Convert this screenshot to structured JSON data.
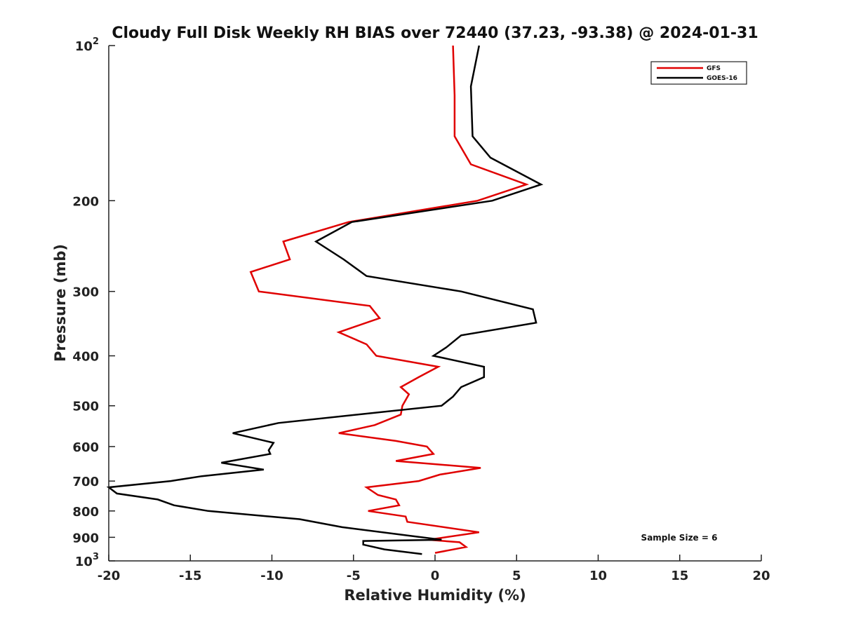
{
  "chart_data": {
    "type": "line",
    "title": "Cloudy Full Disk Weekly RH BIAS over 72440 (37.23, -93.38) @ 2024-01-31",
    "xlabel": "Relative Humidity (%)",
    "ylabel": "Pressure (mb)",
    "xlim": [
      -20,
      20
    ],
    "ylim": [
      100,
      1000
    ],
    "y_scale": "log",
    "y_reversed": true,
    "grid": false,
    "legend_position": "top-right",
    "x_ticks": [
      -20,
      -15,
      -10,
      -5,
      0,
      5,
      10,
      15,
      20
    ],
    "x_tick_labels": [
      "-20",
      "-15",
      "-10",
      "-5",
      "0",
      "5",
      "10",
      "15",
      "20"
    ],
    "y_ticks": [
      {
        "value": 100,
        "base": "10",
        "exp": "2"
      },
      {
        "value": 200,
        "label": "200"
      },
      {
        "value": 300,
        "label": "300"
      },
      {
        "value": 400,
        "label": "400"
      },
      {
        "value": 500,
        "label": "500"
      },
      {
        "value": 600,
        "label": "600"
      },
      {
        "value": 700,
        "label": "700"
      },
      {
        "value": 800,
        "label": "800"
      },
      {
        "value": 900,
        "label": "900"
      },
      {
        "value": 1000,
        "base": "10",
        "exp": "3"
      }
    ],
    "annotation": "Sample Size = 6",
    "series": [
      {
        "name": "GFS",
        "color": "#e00000",
        "points": [
          {
            "x": 1.1,
            "y": 100
          },
          {
            "x": 1.2,
            "y": 125
          },
          {
            "x": 1.2,
            "y": 150
          },
          {
            "x": 2.2,
            "y": 170
          },
          {
            "x": 5.6,
            "y": 186
          },
          {
            "x": 2.6,
            "y": 200
          },
          {
            "x": -5.3,
            "y": 220
          },
          {
            "x": -9.3,
            "y": 240
          },
          {
            "x": -8.9,
            "y": 260
          },
          {
            "x": -11.3,
            "y": 275
          },
          {
            "x": -10.8,
            "y": 300
          },
          {
            "x": -4.0,
            "y": 320
          },
          {
            "x": -3.4,
            "y": 338
          },
          {
            "x": -5.9,
            "y": 360
          },
          {
            "x": -4.2,
            "y": 380
          },
          {
            "x": -3.6,
            "y": 400
          },
          {
            "x": 0.2,
            "y": 420
          },
          {
            "x": -1.0,
            "y": 440
          },
          {
            "x": -2.1,
            "y": 460
          },
          {
            "x": -1.6,
            "y": 475
          },
          {
            "x": -2.0,
            "y": 500
          },
          {
            "x": -2.1,
            "y": 520
          },
          {
            "x": -3.7,
            "y": 545
          },
          {
            "x": -5.9,
            "y": 565
          },
          {
            "x": -2.4,
            "y": 585
          },
          {
            "x": -0.5,
            "y": 600
          },
          {
            "x": -0.1,
            "y": 620
          },
          {
            "x": -2.4,
            "y": 640
          },
          {
            "x": 2.8,
            "y": 660
          },
          {
            "x": 0.3,
            "y": 680
          },
          {
            "x": -1.0,
            "y": 700
          },
          {
            "x": -4.2,
            "y": 720
          },
          {
            "x": -3.5,
            "y": 745
          },
          {
            "x": -2.4,
            "y": 760
          },
          {
            "x": -2.2,
            "y": 780
          },
          {
            "x": -4.1,
            "y": 800
          },
          {
            "x": -1.8,
            "y": 820
          },
          {
            "x": -1.7,
            "y": 840
          },
          {
            "x": 2.7,
            "y": 880
          },
          {
            "x": -0.4,
            "y": 910
          },
          {
            "x": 1.5,
            "y": 920
          },
          {
            "x": 1.9,
            "y": 940
          },
          {
            "x": 0.0,
            "y": 965
          }
        ]
      },
      {
        "name": "GOES-16",
        "color": "#000000",
        "points": [
          {
            "x": 2.7,
            "y": 100
          },
          {
            "x": 2.2,
            "y": 120
          },
          {
            "x": 2.3,
            "y": 150
          },
          {
            "x": 3.4,
            "y": 165
          },
          {
            "x": 6.5,
            "y": 186
          },
          {
            "x": 3.5,
            "y": 200
          },
          {
            "x": -5.1,
            "y": 220
          },
          {
            "x": -7.3,
            "y": 240
          },
          {
            "x": -5.6,
            "y": 260
          },
          {
            "x": -4.2,
            "y": 280
          },
          {
            "x": 1.6,
            "y": 300
          },
          {
            "x": 6.0,
            "y": 325
          },
          {
            "x": 6.2,
            "y": 345
          },
          {
            "x": 1.6,
            "y": 365
          },
          {
            "x": 0.7,
            "y": 385
          },
          {
            "x": -0.1,
            "y": 400
          },
          {
            "x": 3.0,
            "y": 420
          },
          {
            "x": 3.0,
            "y": 440
          },
          {
            "x": 1.6,
            "y": 460
          },
          {
            "x": 1.1,
            "y": 480
          },
          {
            "x": 0.4,
            "y": 500
          },
          {
            "x": -9.6,
            "y": 540
          },
          {
            "x": -12.4,
            "y": 565
          },
          {
            "x": -9.9,
            "y": 590
          },
          {
            "x": -10.2,
            "y": 610
          },
          {
            "x": -10.1,
            "y": 620
          },
          {
            "x": -13.1,
            "y": 645
          },
          {
            "x": -10.5,
            "y": 665
          },
          {
            "x": -14.3,
            "y": 685
          },
          {
            "x": -16.2,
            "y": 700
          },
          {
            "x": -20.0,
            "y": 720
          },
          {
            "x": -19.5,
            "y": 740
          },
          {
            "x": -17.0,
            "y": 760
          },
          {
            "x": -16.0,
            "y": 780
          },
          {
            "x": -13.9,
            "y": 800
          },
          {
            "x": -8.3,
            "y": 830
          },
          {
            "x": -5.7,
            "y": 860
          },
          {
            "x": 0.4,
            "y": 910
          },
          {
            "x": -4.4,
            "y": 915
          },
          {
            "x": -4.4,
            "y": 930
          },
          {
            "x": -3.1,
            "y": 950
          },
          {
            "x": -0.8,
            "y": 970
          }
        ]
      }
    ]
  }
}
